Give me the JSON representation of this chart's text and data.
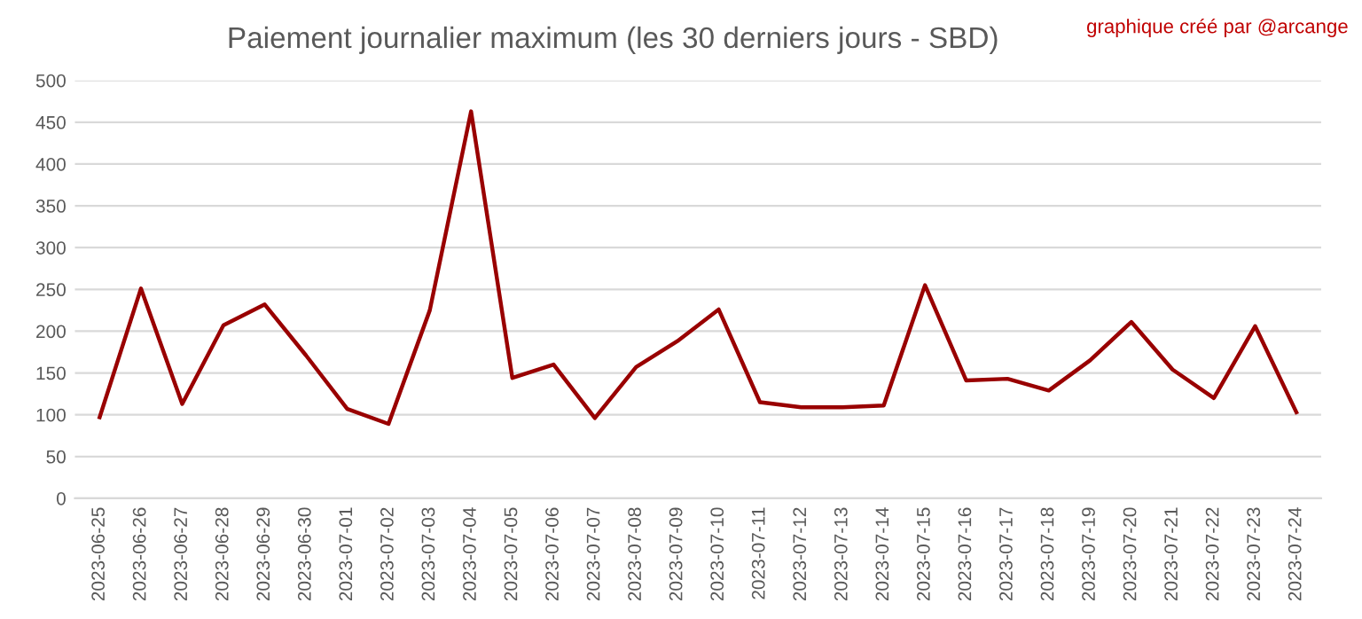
{
  "chart_data": {
    "type": "line",
    "title": "Paiement journalier maximum (les 30 derniers jours - SBD)",
    "annotations": [
      "graphique créé par @arcange"
    ],
    "categories": [
      "2023-06-25",
      "2023-06-26",
      "2023-06-27",
      "2023-06-28",
      "2023-06-29",
      "2023-06-30",
      "2023-07-01",
      "2023-07-02",
      "2023-07-03",
      "2023-07-04",
      "2023-07-05",
      "2023-07-06",
      "2023-07-07",
      "2023-07-08",
      "2023-07-09",
      "2023-07-10",
      "2023-07-11",
      "2023-07-12",
      "2023-07-13",
      "2023-07-14",
      "2023-07-15",
      "2023-07-16",
      "2023-07-17",
      "2023-07-18",
      "2023-07-19",
      "2023-07-20",
      "2023-07-21",
      "2023-07-22",
      "2023-07-23",
      "2023-07-24"
    ],
    "series": [
      {
        "color": "#990000",
        "values": [
          97,
          251,
          113,
          207,
          232,
          171,
          107,
          89,
          225,
          463,
          144,
          160,
          96,
          157,
          188,
          226,
          115,
          109,
          109,
          111,
          255,
          141,
          143,
          129,
          165,
          211,
          154,
          120,
          206,
          103
        ]
      }
    ],
    "ylim": [
      0,
      500
    ],
    "yticks": [
      0,
      50,
      100,
      150,
      200,
      250,
      300,
      350,
      400,
      450,
      500
    ],
    "grid": "y",
    "legend": false,
    "marker": "none",
    "line_style": "solid"
  }
}
